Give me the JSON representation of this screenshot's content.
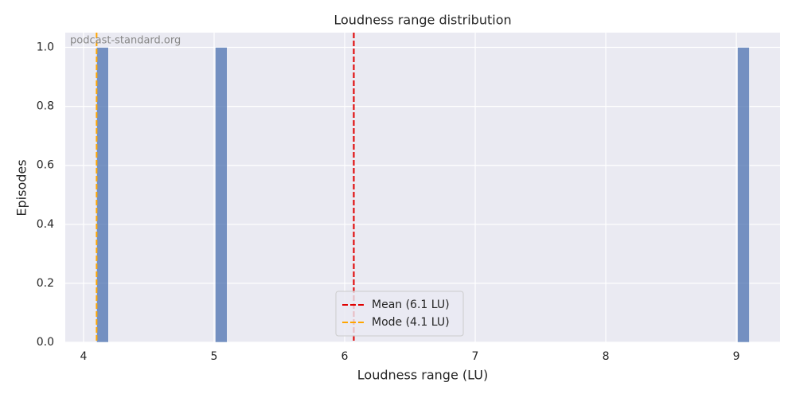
{
  "chart_data": {
    "type": "histogram",
    "title": "Loudness range distribution",
    "x_label": "Loudness range (LU)",
    "y_label": "Episodes",
    "watermark": "podcast-standard.org",
    "bins": [
      4.1,
      4.191,
      4.282,
      4.373,
      4.464,
      4.555,
      4.645,
      4.736,
      4.827,
      4.918,
      5.009,
      5.1,
      5.191,
      5.282,
      5.373,
      5.464,
      5.555,
      5.645,
      5.736,
      5.827,
      5.918,
      6.009,
      6.1,
      6.191,
      6.282,
      6.373,
      6.464,
      6.555,
      6.645,
      6.736,
      6.827,
      6.918,
      7.009,
      7.1,
      7.191,
      7.282,
      7.373,
      7.464,
      7.555,
      7.645,
      7.736,
      7.827,
      7.918,
      8.009,
      8.1,
      8.191,
      8.282,
      8.373,
      8.464,
      8.555,
      8.645,
      8.736,
      8.827,
      8.918,
      9.009,
      9.1
    ],
    "counts": [
      1,
      0,
      0,
      0,
      0,
      0,
      0,
      0,
      0,
      0,
      1,
      0,
      0,
      0,
      0,
      0,
      0,
      0,
      0,
      0,
      0,
      0,
      0,
      0,
      0,
      0,
      0,
      0,
      0,
      0,
      0,
      0,
      0,
      0,
      0,
      0,
      0,
      0,
      0,
      0,
      0,
      0,
      0,
      0,
      0,
      0,
      0,
      0,
      0,
      0,
      0,
      0,
      0,
      0,
      1
    ],
    "color": "#4c72b0",
    "vlines": [
      {
        "name": "Mean (6.1 LU)",
        "value": 6.07,
        "color": "#e00000"
      },
      {
        "name": "Mode (4.1 LU)",
        "value": 4.1,
        "color": "#ffa500"
      }
    ],
    "xlim": [
      3.86,
      9.335
    ],
    "xticks": [
      4,
      5,
      6,
      7,
      8,
      9
    ],
    "ylim": [
      0,
      1.05
    ],
    "yticks": [
      {
        "value": 0,
        "label": "0.0"
      },
      0.2,
      0.4,
      0.6,
      0.8,
      {
        "value": 1,
        "label": "1.0"
      }
    ],
    "grid": true,
    "legend": "lower center"
  }
}
